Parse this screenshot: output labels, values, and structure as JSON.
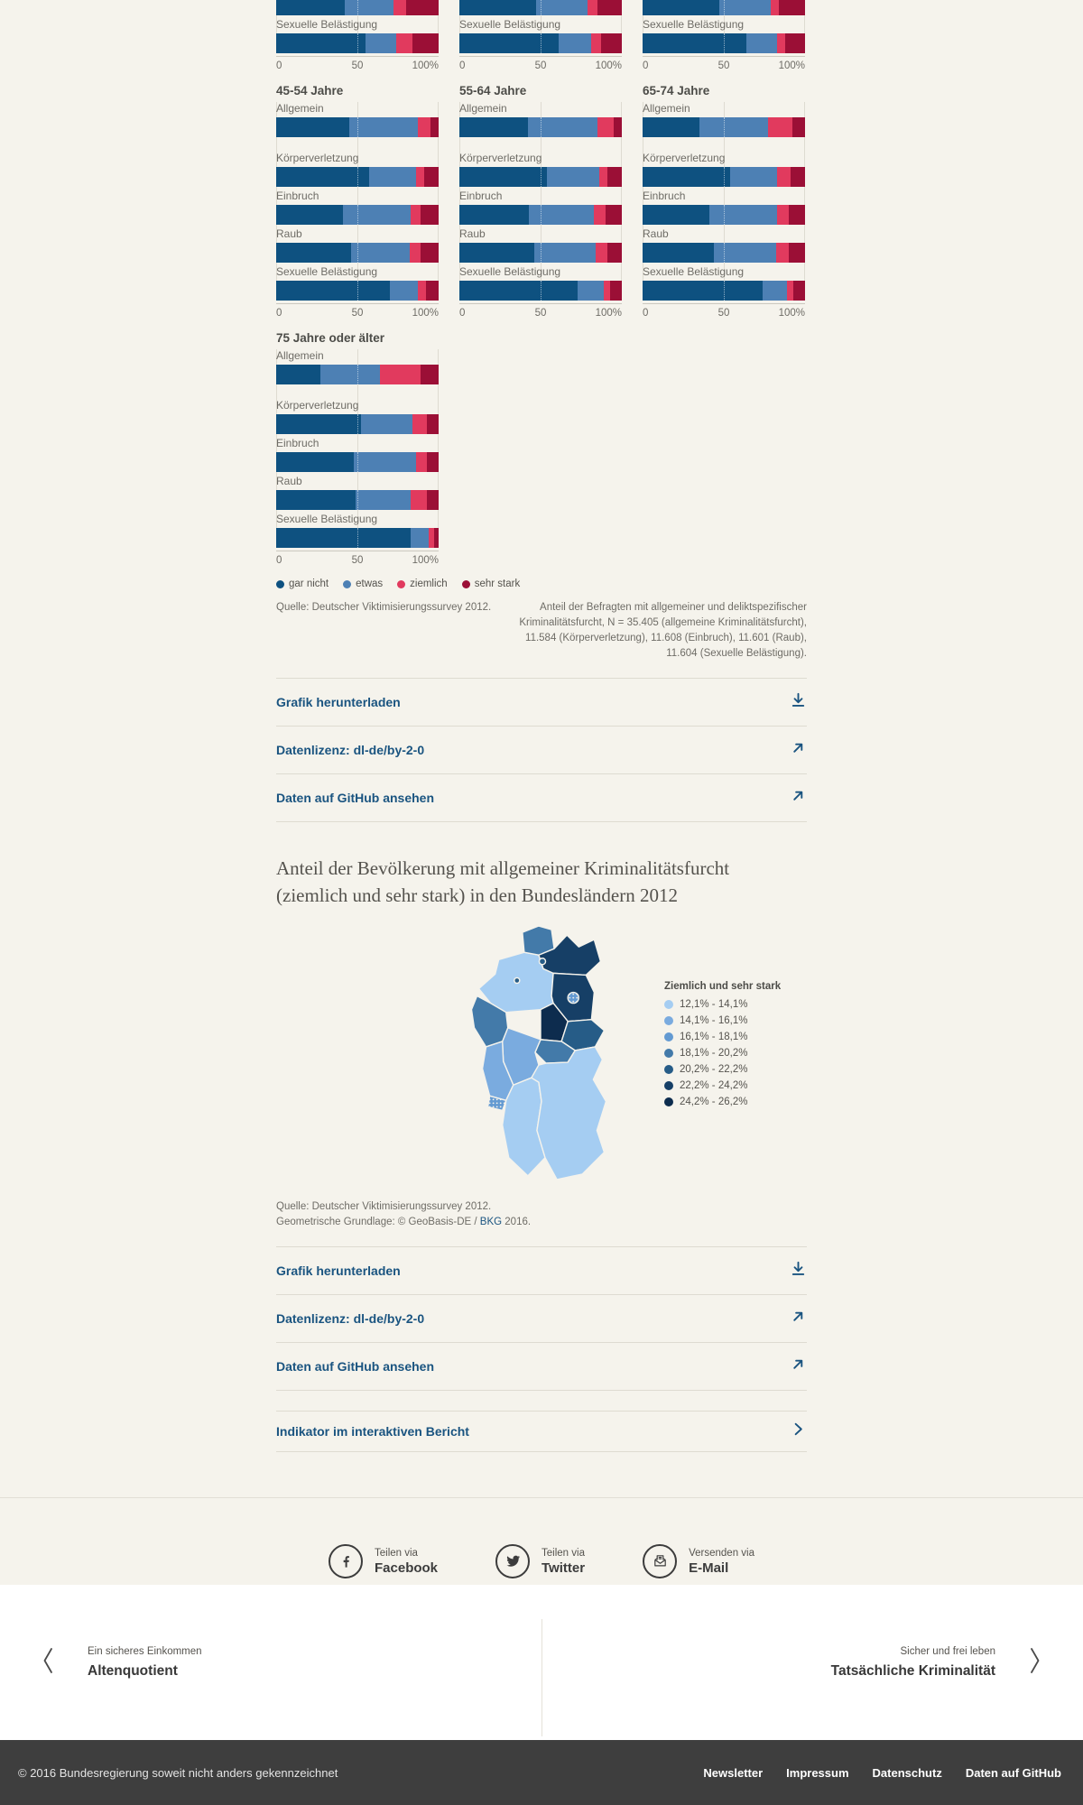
{
  "colors": {
    "background": "#f5f3ec",
    "link_blue": "#1a5480",
    "rule": "#dedbd1",
    "footer_bg": "#3e3e3e",
    "text_gray": "#6e6c66"
  },
  "chart_data": [
    {
      "type": "bar",
      "stacked": true,
      "orientation": "horizontal",
      "title": "",
      "legend": [
        "gar nicht",
        "etwas",
        "ziemlich",
        "sehr stark"
      ],
      "colors": [
        "#0e5180",
        "#4d80b4",
        "#e13a5e",
        "#9b0f36"
      ],
      "axis_ticks": [
        "0",
        "50",
        "100%"
      ],
      "xlim": [
        0,
        100
      ],
      "partial_groups": [
        {
          "rows": [
            {
              "values": [
                42,
                30,
                8,
                20
              ]
            },
            {
              "label": "Sexuelle Belästigung",
              "values": [
                55,
                19,
                10,
                16
              ]
            }
          ]
        },
        {
          "rows": [
            {
              "values": [
                47,
                32,
                6,
                15
              ]
            },
            {
              "label": "Sexuelle Belästigung",
              "values": [
                61,
                20,
                6,
                13
              ]
            }
          ]
        },
        {
          "rows": [
            {
              "values": [
                47,
                32,
                5,
                16
              ]
            },
            {
              "label": "Sexuelle Belästigung",
              "values": [
                64,
                19,
                5,
                12
              ]
            }
          ]
        }
      ],
      "groups": [
        {
          "title": "45-54 Jahre",
          "rows": [
            {
              "label": "Allgemein",
              "values": [
                45,
                42,
                8,
                5
              ]
            },
            {
              "label": "Körperverletzung",
              "values": [
                57,
                29,
                5,
                9
              ]
            },
            {
              "label": "Einbruch",
              "values": [
                41,
                42,
                6,
                11
              ]
            },
            {
              "label": "Raub",
              "values": [
                46,
                36,
                7,
                11
              ]
            },
            {
              "label": "Sexuelle Belästigung",
              "values": [
                70,
                17,
                5,
                8
              ]
            }
          ]
        },
        {
          "title": "55-64 Jahre",
          "rows": [
            {
              "label": "Allgemein",
              "values": [
                42,
                43,
                10,
                5
              ]
            },
            {
              "label": "Körperverletzung",
              "values": [
                54,
                32,
                5,
                9
              ]
            },
            {
              "label": "Einbruch",
              "values": [
                43,
                40,
                7,
                10
              ]
            },
            {
              "label": "Raub",
              "values": [
                46,
                38,
                7,
                9
              ]
            },
            {
              "label": "Sexuelle Belästigung",
              "values": [
                73,
                16,
                4,
                7
              ]
            }
          ]
        },
        {
          "title": "65-74 Jahre",
          "rows": [
            {
              "label": "Allgemein",
              "values": [
                35,
                42,
                15,
                8
              ]
            },
            {
              "label": "Körperverletzung",
              "values": [
                54,
                29,
                8,
                9
              ]
            },
            {
              "label": "Einbruch",
              "values": [
                41,
                42,
                7,
                10
              ]
            },
            {
              "label": "Raub",
              "values": [
                44,
                38,
                8,
                10
              ]
            },
            {
              "label": "Sexuelle Belästigung",
              "values": [
                74,
                15,
                4,
                7
              ]
            }
          ]
        },
        {
          "title": "75 Jahre oder älter",
          "rows": [
            {
              "label": "Allgemein",
              "values": [
                27,
                37,
                25,
                11
              ]
            },
            {
              "label": "Körperverletzung",
              "values": [
                52,
                32,
                9,
                7
              ]
            },
            {
              "label": "Einbruch",
              "values": [
                48,
                38,
                7,
                7
              ]
            },
            {
              "label": "Raub",
              "values": [
                49,
                34,
                10,
                7
              ]
            },
            {
              "label": "Sexuelle Belästigung",
              "values": [
                83,
                11,
                3,
                3
              ]
            }
          ]
        }
      ],
      "source": "Quelle: Deutscher Viktimisierungssurvey 2012.",
      "note": "Anteil der Befragten mit allgemeiner und deliktspezifischer Kriminalitätsfurcht, N = 35.405 (allgemeine Kriminalitätsfurcht), 11.584 (Körperverletzung), 11.608 (Einbruch), 11.601 (Raub), 11.604 (Sexuelle Belästigung)."
    },
    {
      "type": "choropleth",
      "title": "Anteil der Bevölkerung mit allgemeiner Kriminalitätsfurcht (ziemlich und sehr stark) in den Bundesländern 2012",
      "legend_title": "Ziemlich und sehr stark",
      "legend_position": "right",
      "classes": [
        {
          "label": "12,1% - 14,1%",
          "color": "#a5cdf2"
        },
        {
          "label": "14,1% - 16,1%",
          "color": "#7aabdf"
        },
        {
          "label": "16,1% - 18,1%",
          "color": "#639ad2",
          "dotted": true
        },
        {
          "label": "18,1% - 20,2%",
          "color": "#437aa9"
        },
        {
          "label": "20,2% - 22,2%",
          "color": "#265c87"
        },
        {
          "label": "22,2% - 24,2%",
          "color": "#163f66"
        },
        {
          "label": "24,2% - 26,2%",
          "color": "#0d2c4e"
        }
      ],
      "regions": {
        "schleswig-holstein": 3,
        "mecklenburg-vorpommern": 5,
        "hamburg": 4,
        "niedersachsen": 0,
        "bremen": 4,
        "brandenburg": 5,
        "berlin": 2,
        "sachsen-anhalt": 6,
        "sachsen": 4,
        "thueringen": 3,
        "hessen": 1,
        "nordrhein-westfalen": 3,
        "rheinland-pfalz": 1,
        "saarland": 2,
        "baden-wuerttemberg": 0,
        "bayern": 0
      },
      "source_line1": "Quelle: Deutscher Viktimisierungssurvey 2012.",
      "source_line2_prefix": "Geometrische Grundlage: © GeoBasis-DE / ",
      "source_link_text": "BKG",
      "source_line2_suffix": " 2016."
    }
  ],
  "links": {
    "items": [
      {
        "label": "Grafik herunterladen",
        "icon": "download"
      },
      {
        "label": "Datenlizenz: dl-de/by-2-0",
        "icon": "external"
      },
      {
        "label": "Daten auf GitHub ansehen",
        "icon": "external"
      }
    ]
  },
  "indicator": {
    "label": "Indikator im interaktiven Bericht"
  },
  "share": {
    "items": [
      {
        "via": "Teilen via",
        "name": "Facebook"
      },
      {
        "via": "Teilen via",
        "name": "Twitter"
      },
      {
        "via": "Versenden via",
        "name": "E-Mail"
      }
    ]
  },
  "pager": {
    "prev_kicker": "Ein sicheres Einkommen",
    "prev_title": "Altenquotient",
    "next_kicker": "Sicher und frei leben",
    "next_title": "Tatsächliche Kriminalität"
  },
  "footer": {
    "copyright": "© 2016 Bundesregierung soweit nicht anders gekennzeichnet",
    "links": [
      "Newsletter",
      "Impressum",
      "Datenschutz",
      "Daten auf GitHub"
    ]
  }
}
